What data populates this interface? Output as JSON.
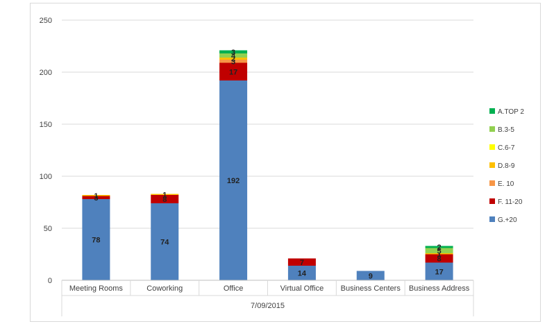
{
  "chart_data": {
    "type": "bar",
    "stacked": true,
    "x_group_label": "7/09/2015",
    "categories": [
      "Meeting Rooms",
      "Coworking",
      "Office",
      "Virtual Office",
      "Business Centers",
      "Business Address"
    ],
    "ylim": [
      0,
      250
    ],
    "yticks": [
      0,
      50,
      100,
      150,
      200,
      250
    ],
    "grid": true,
    "legend_position": "right",
    "series": [
      {
        "name": "G.+20",
        "color": "#4f81bd",
        "values": [
          78,
          74,
          192,
          14,
          9,
          17
        ],
        "labels": [
          "78",
          "74",
          "192",
          "14",
          "9",
          "17"
        ]
      },
      {
        "name": "F. 11-20",
        "color": "#c00000",
        "values": [
          3,
          8,
          17,
          7,
          0,
          8
        ],
        "labels": [
          "3",
          "8",
          "17",
          "7",
          "",
          "8"
        ]
      },
      {
        "name": "E. 10",
        "color": "#f79646",
        "values": [
          0,
          0,
          3,
          0,
          0,
          0
        ],
        "labels": [
          "",
          "",
          "3",
          "",
          "",
          ""
        ]
      },
      {
        "name": "D.8-9",
        "color": "#ffc000",
        "values": [
          1,
          1,
          2,
          0,
          0,
          1
        ],
        "labels": [
          "1",
          "1",
          "2",
          "",
          "",
          "1"
        ]
      },
      {
        "name": "C.6-7",
        "color": "#ffff00",
        "values": [
          0,
          0,
          0,
          0,
          0,
          0
        ],
        "labels": [
          "",
          "",
          "",
          "",
          "",
          ""
        ]
      },
      {
        "name": "B.3-5",
        "color": "#92d050",
        "values": [
          0,
          0,
          4,
          0,
          0,
          5
        ],
        "labels": [
          "",
          "",
          "4",
          "",
          "",
          "5"
        ]
      },
      {
        "name": "A.TOP 2",
        "color": "#00b050",
        "values": [
          0,
          0,
          3,
          0,
          0,
          2
        ],
        "labels": [
          "",
          "",
          "3",
          "",
          "",
          "2"
        ]
      }
    ]
  }
}
